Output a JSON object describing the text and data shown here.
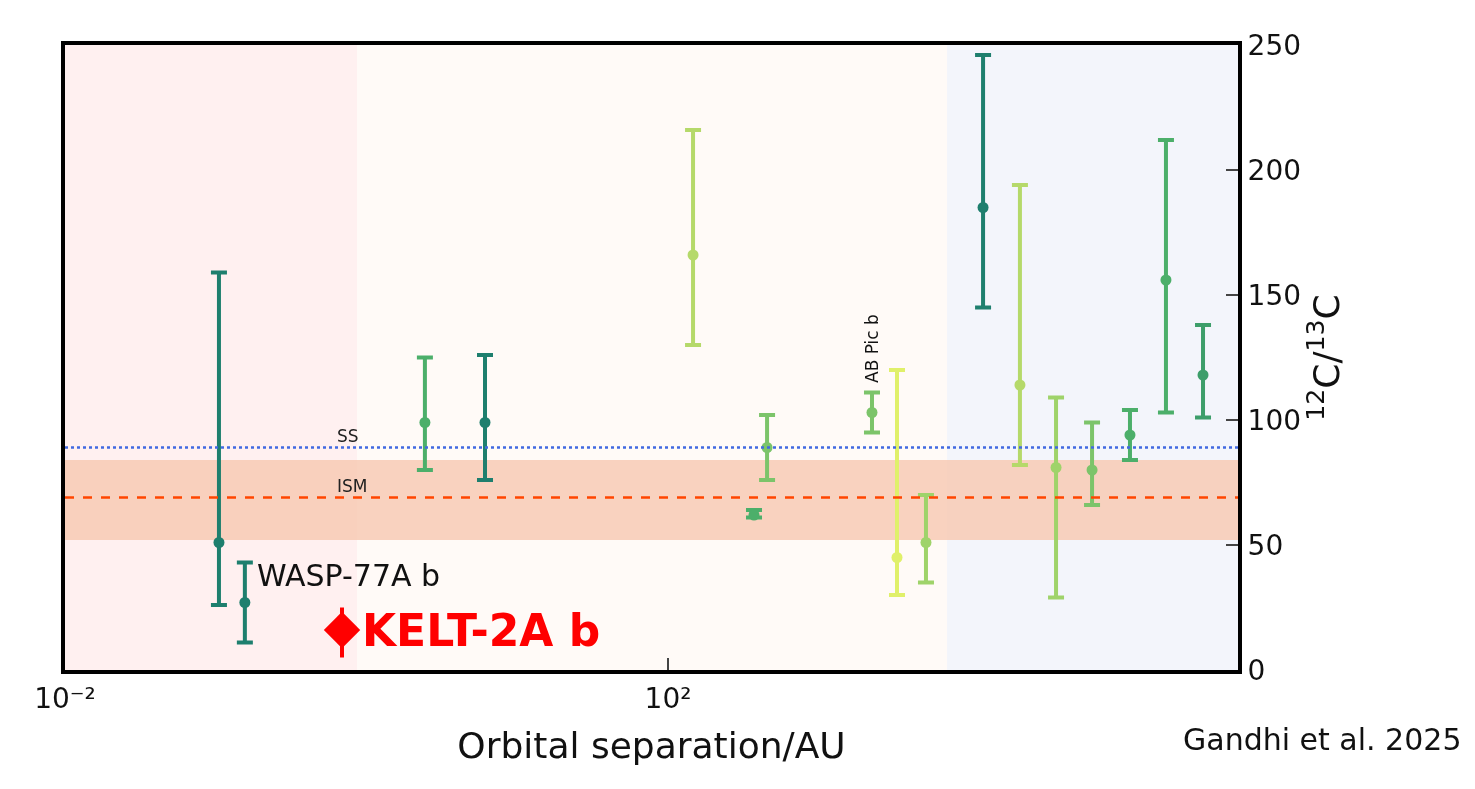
{
  "chart_data": {
    "type": "scatter",
    "xlabel": "Orbital separation/AU",
    "ylabel": "$^{12}$C/$^{13}$C",
    "log": "x",
    "xlim": [
      0.01,
      604000
    ],
    "xticks": [
      {
        "value": 0.01,
        "label": "10⁻²"
      },
      {
        "value": 100,
        "label": "10²"
      }
    ],
    "ylim": [
      0,
      250
    ],
    "yticks": [
      0,
      50,
      100,
      150,
      200,
      250
    ],
    "grid": false,
    "legend": "bottom left",
    "marker": "circle",
    "series": [
      {
        "x": [
          0.105,
          0.156,
          2.44,
          6.11,
          146.6,
          372,
          454,
          2255,
          3304,
          5143,
          12300,
          21600,
          37500,
          65000,
          116000,
          201000,
          354000
        ],
        "values": [
          51,
          27,
          99,
          99,
          166,
          62,
          89,
          103,
          45,
          51,
          185,
          114,
          81,
          80,
          94,
          156,
          118
        ],
        "errors": [
          [
            26,
            159
          ],
          [
            11,
            43
          ],
          [
            80,
            125
          ],
          [
            76,
            126
          ],
          [
            130,
            216
          ],
          [
            61,
            64
          ],
          [
            76,
            102
          ],
          [
            95,
            111
          ],
          [
            30,
            120
          ],
          [
            35,
            70
          ],
          [
            145,
            246
          ],
          [
            82,
            194
          ],
          [
            29,
            109
          ],
          [
            66,
            99
          ],
          [
            84,
            104
          ],
          [
            103,
            212
          ],
          [
            101,
            138
          ]
        ],
        "colors": [
          "#1e7f6e",
          "#1e7f6e",
          "#4caf6a",
          "#1e7f6e",
          "#b5d96a",
          "#4caf6a",
          "#7cc46a",
          "#7cc46a",
          "#e0f06a",
          "#9fd36a",
          "#1e7f6e",
          "#b5d96a",
          "#9fd36a",
          "#7cc46a",
          "#4caf6a",
          "#4caf6a",
          "#3d9e6a"
        ]
      },
      {
        "name": "KELT-2A b",
        "color": "#ff0000",
        "marker": "diamond",
        "x": [
          0.688
        ],
        "values": [
          16
        ],
        "errors": [
          [
            5,
            25
          ]
        ]
      }
    ],
    "ref_lines": [
      {
        "axis": "y",
        "value": 89,
        "label": "SS",
        "color": "#4169e1",
        "line_style": "dotted"
      },
      {
        "axis": "y",
        "value": 69,
        "label": "ISM",
        "color": "#ff4500",
        "line_style": "dashed"
      }
    ],
    "bands": [
      {
        "axis": "y",
        "from": 52,
        "to": 84,
        "color": "#f8c8b0"
      },
      {
        "axis": "x",
        "from": 0.01,
        "to": 0.865,
        "color": "#fff0f0"
      },
      {
        "axis": "x",
        "from": 0.865,
        "to": 7100,
        "color": "#fffaf7"
      },
      {
        "axis": "x",
        "from": 7100,
        "to": 604000,
        "color": "#f3f5fb"
      }
    ],
    "annotations": [
      {
        "text": "WASP-77A b",
        "x": 0.156,
        "y": 27
      },
      {
        "text": "AB Pic b",
        "x": 2255,
        "y": 111
      },
      "Gandhi et al. 2025"
    ]
  }
}
